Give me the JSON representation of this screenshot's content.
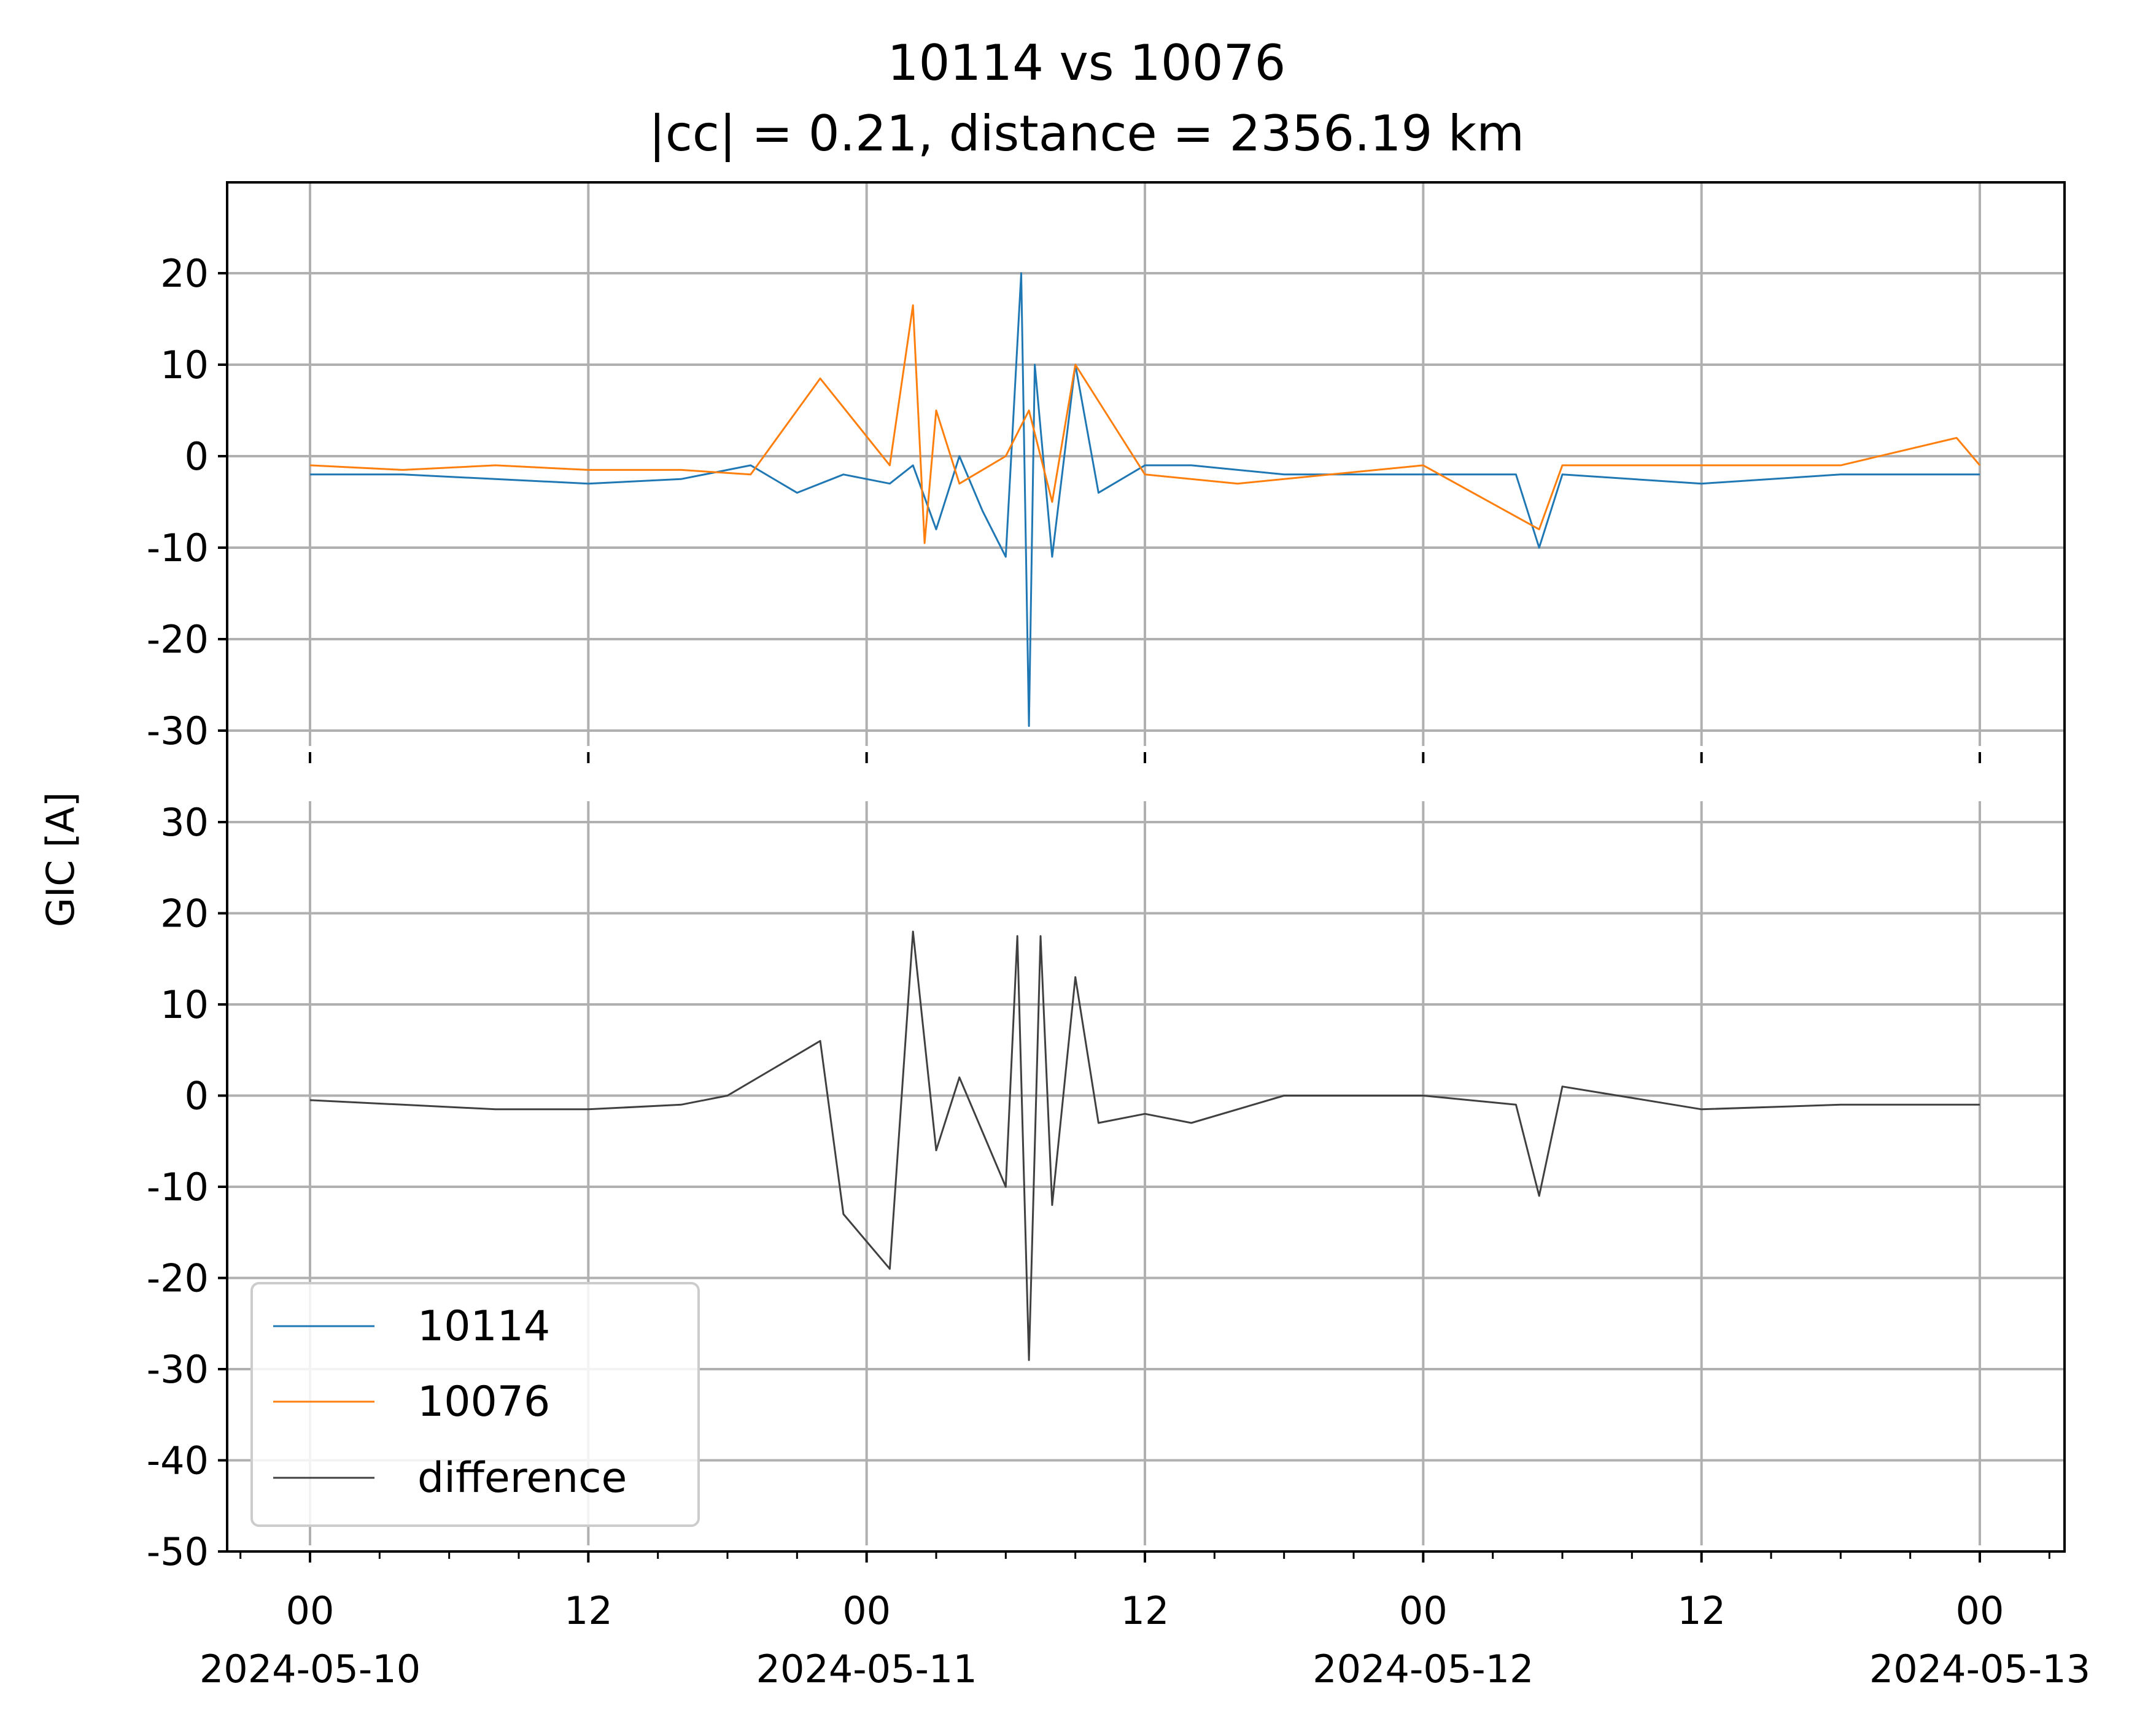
{
  "figure": {
    "title_line1": "10114 vs 10076",
    "title_line2": "|cc| = 0.21, distance = 2356.19 km",
    "ylabel": "GIC [A]"
  },
  "colors": {
    "series_10114": "#1f77b4",
    "series_10076": "#ff7f0e",
    "difference": "#404040",
    "grid": "#b0b0b0"
  },
  "chart_data": [
    {
      "type": "line",
      "panel": "top",
      "x_range": [
        "2024-05-10 00:00",
        "2024-05-13 00:00"
      ],
      "ylim": [
        -30,
        30
      ],
      "yticks": [
        20,
        10,
        0,
        -10,
        -20,
        -30
      ],
      "ytick_labels": [
        "20",
        "10",
        "0",
        "-10",
        "-20",
        "-30"
      ],
      "grid": true,
      "series": [
        {
          "name": "10114",
          "color": "#1f77b4",
          "x": [
            "2024-05-10 00:00",
            "2024-05-10 04:00",
            "2024-05-10 08:00",
            "2024-05-10 12:00",
            "2024-05-10 16:00",
            "2024-05-10 19:00",
            "2024-05-10 21:00",
            "2024-05-10 23:00",
            "2024-05-11 01:00",
            "2024-05-11 02:00",
            "2024-05-11 03:00",
            "2024-05-11 04:00",
            "2024-05-11 05:00",
            "2024-05-11 06:00",
            "2024-05-11 06:40",
            "2024-05-11 07:00",
            "2024-05-11 07:15",
            "2024-05-11 08:00",
            "2024-05-11 09:00",
            "2024-05-11 10:00",
            "2024-05-11 12:00",
            "2024-05-11 14:00",
            "2024-05-11 18:00",
            "2024-05-12 00:00",
            "2024-05-12 04:00",
            "2024-05-12 05:00",
            "2024-05-12 06:00",
            "2024-05-12 12:00",
            "2024-05-12 18:00",
            "2024-05-13 00:00"
          ],
          "values": [
            -2,
            -2,
            -2.5,
            -3,
            -2.5,
            -1,
            -4,
            -2,
            -3,
            -1,
            -8,
            0,
            -6,
            -11,
            20,
            -29.5,
            10,
            -11,
            10,
            -4,
            -1,
            -1,
            -2,
            -2,
            -2,
            -10,
            -2,
            -3,
            -2,
            -2
          ]
        },
        {
          "name": "10076",
          "color": "#ff7f0e",
          "x": [
            "2024-05-10 00:00",
            "2024-05-10 04:00",
            "2024-05-10 08:00",
            "2024-05-10 12:00",
            "2024-05-10 16:00",
            "2024-05-10 19:00",
            "2024-05-10 21:00",
            "2024-05-10 22:00",
            "2024-05-11 01:00",
            "2024-05-11 02:00",
            "2024-05-11 02:30",
            "2024-05-11 03:00",
            "2024-05-11 04:00",
            "2024-05-11 06:00",
            "2024-05-11 07:00",
            "2024-05-11 08:00",
            "2024-05-11 09:00",
            "2024-05-11 12:00",
            "2024-05-11 16:00",
            "2024-05-11 20:00",
            "2024-05-12 00:00",
            "2024-05-12 05:00",
            "2024-05-12 06:00",
            "2024-05-12 12:00",
            "2024-05-12 18:00",
            "2024-05-12 23:00",
            "2024-05-13 00:00"
          ],
          "values": [
            -1,
            -1.5,
            -1,
            -1.5,
            -1.5,
            -2,
            5,
            8.5,
            -1,
            16.5,
            -9.5,
            5,
            -3,
            0,
            5,
            -5,
            10,
            -2,
            -3,
            -2,
            -1,
            -8,
            -1,
            -1,
            -1,
            2,
            -1
          ]
        }
      ]
    },
    {
      "type": "line",
      "panel": "bottom",
      "x_range": [
        "2024-05-10 00:00",
        "2024-05-13 00:00"
      ],
      "xtick_labels": [
        [
          "00",
          "2024-05-10"
        ],
        [
          "12",
          ""
        ],
        [
          "00",
          "2024-05-11"
        ],
        [
          "12",
          ""
        ],
        [
          "00",
          "2024-05-12"
        ],
        [
          "12",
          ""
        ],
        [
          "00",
          "2024-05-13"
        ]
      ],
      "ylim": [
        -50,
        30
      ],
      "yticks": [
        30,
        20,
        10,
        0,
        -10,
        -20,
        -30,
        -40,
        -50
      ],
      "ytick_labels": [
        "30",
        "20",
        "10",
        "0",
        "-10",
        "-20",
        "-30",
        "-40",
        "-50"
      ],
      "grid": true,
      "series": [
        {
          "name": "difference",
          "color": "#404040",
          "x": [
            "2024-05-10 00:00",
            "2024-05-10 04:00",
            "2024-05-10 08:00",
            "2024-05-10 12:00",
            "2024-05-10 16:00",
            "2024-05-10 18:00",
            "2024-05-10 20:00",
            "2024-05-10 22:00",
            "2024-05-10 23:00",
            "2024-05-11 01:00",
            "2024-05-11 02:00",
            "2024-05-11 03:00",
            "2024-05-11 04:00",
            "2024-05-11 06:00",
            "2024-05-11 06:30",
            "2024-05-11 07:00",
            "2024-05-11 07:30",
            "2024-05-11 08:00",
            "2024-05-11 09:00",
            "2024-05-11 10:00",
            "2024-05-11 12:00",
            "2024-05-11 14:00",
            "2024-05-11 18:00",
            "2024-05-12 00:00",
            "2024-05-12 04:00",
            "2024-05-12 05:00",
            "2024-05-12 06:00",
            "2024-05-12 12:00",
            "2024-05-12 18:00",
            "2024-05-13 00:00"
          ],
          "values": [
            -0.5,
            -1,
            -1.5,
            -1.5,
            -1,
            0,
            3,
            6,
            -13,
            -19,
            18,
            -6,
            2,
            -10,
            17.5,
            -29,
            17.5,
            -12,
            13,
            -3,
            -2,
            -3,
            0,
            0,
            -1,
            -11,
            1,
            -1.5,
            -1,
            -1
          ]
        }
      ]
    }
  ],
  "legend": {
    "placement": "lower-left",
    "entries": [
      {
        "label": "10114",
        "color": "#1f77b4"
      },
      {
        "label": "10076",
        "color": "#ff7f0e"
      },
      {
        "label": "difference",
        "color": "#404040"
      }
    ]
  }
}
